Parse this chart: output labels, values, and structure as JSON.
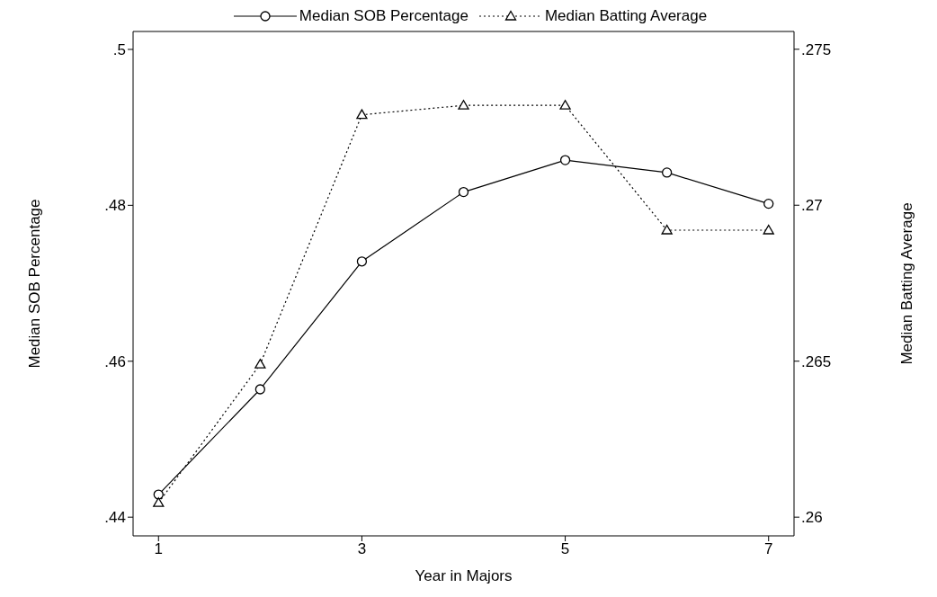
{
  "chart_data": {
    "type": "line",
    "xlabel": "Year in Majors",
    "ylabel": "Median SOB Percentage",
    "y2label": "Median Batting Average",
    "x": [
      1,
      2,
      3,
      4,
      5,
      6,
      7
    ],
    "series": [
      {
        "name": "Median SOB Percentage",
        "color": "#000000",
        "marker": "circle",
        "line_style": "solid",
        "values": [
          0.4429,
          0.4564,
          0.4728,
          0.4817,
          0.4858,
          0.4842,
          0.4802
        ]
      },
      {
        "name": "Median Batting Average",
        "color": "#000000",
        "marker": "triangle",
        "line_style": "dotted",
        "axis": "y2",
        "values": [
          0.26046,
          0.2649,
          0.2729,
          0.2732,
          0.2732,
          0.2692,
          0.2692
        ]
      }
    ],
    "xlim": [
      0.75,
      7.25
    ],
    "xticks": [
      1,
      3,
      5,
      7
    ],
    "ylim": [
      0.4376,
      0.5023
    ],
    "yticks": [
      {
        "value": 0.44,
        "label": ".44"
      },
      {
        "value": 0.46,
        "label": ".46"
      },
      {
        "value": 0.48,
        "label": ".48"
      },
      {
        "value": 0.5,
        "label": ".5"
      }
    ],
    "y2lim": [
      0.2594,
      0.27557
    ],
    "y2ticks": [
      {
        "value": 0.26,
        "label": ".26"
      },
      {
        "value": 0.265,
        "label": ".265"
      },
      {
        "value": 0.27,
        "label": ".27"
      },
      {
        "value": 0.275,
        "label": ".275"
      }
    ],
    "legend": "top",
    "grid": false
  }
}
